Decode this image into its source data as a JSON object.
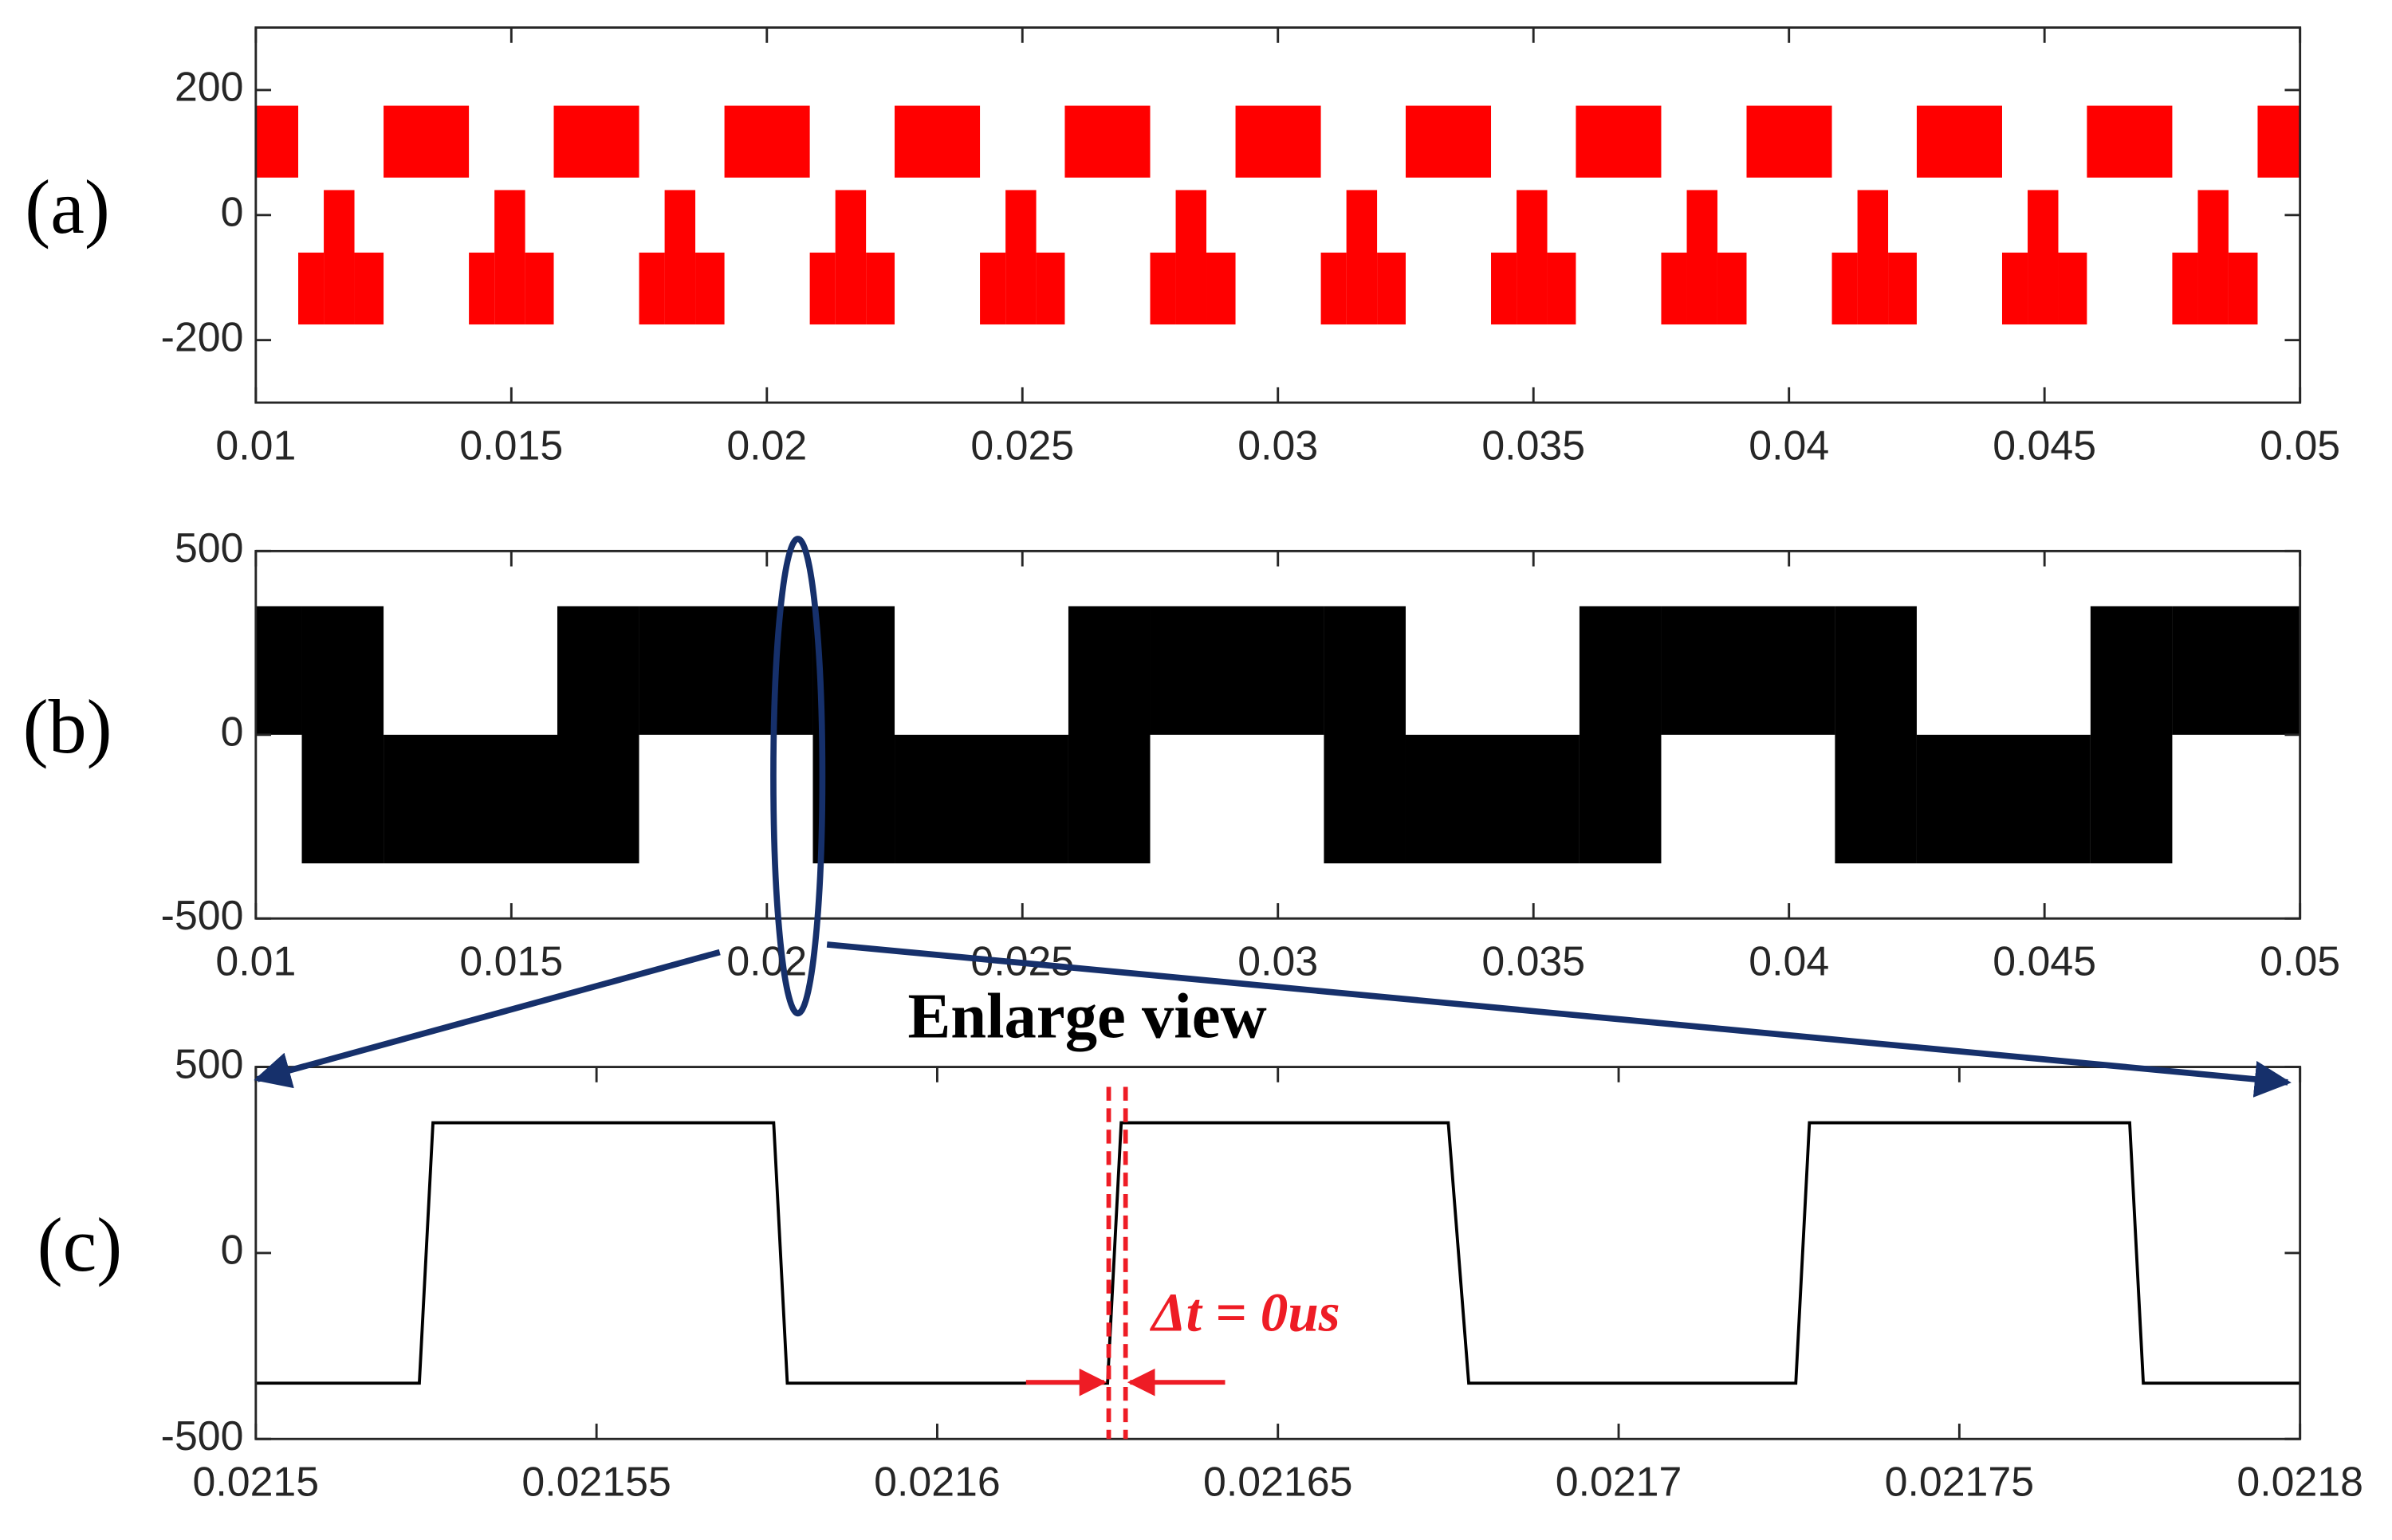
{
  "chart_data": [
    {
      "type": "band",
      "label": "(a)",
      "color": "#ff0000",
      "x": [
        0.01,
        0.01083,
        0.01133,
        0.01193,
        0.0125,
        0.01417,
        0.01467,
        0.01527,
        0.01583,
        0.0175,
        0.018,
        0.0186,
        0.01917,
        0.02084,
        0.02134,
        0.02194,
        0.0225,
        0.02417,
        0.02467,
        0.02527,
        0.02583,
        0.0275,
        0.028,
        0.0286,
        0.02917,
        0.03084,
        0.03134,
        0.03194,
        0.0325,
        0.03417,
        0.03467,
        0.03527,
        0.03583,
        0.0375,
        0.038,
        0.0386,
        0.03917,
        0.04084,
        0.04134,
        0.04194,
        0.0425,
        0.04417,
        0.04467,
        0.04527,
        0.04583,
        0.0475,
        0.048,
        0.0486,
        0.04917
      ],
      "high": [
        175,
        -60,
        40,
        -60,
        175,
        -60,
        40,
        -60,
        175,
        -60,
        40,
        -60,
        175,
        -60,
        40,
        -60,
        175,
        -60,
        40,
        -60,
        175,
        -60,
        40,
        -60,
        175,
        -60,
        40,
        -60,
        175,
        -60,
        40,
        -60,
        175,
        -60,
        40,
        -60,
        175,
        -60,
        40,
        -60,
        175,
        -60,
        40,
        -60,
        175,
        -60,
        40,
        -60,
        175
      ],
      "low": [
        60,
        -175,
        -175,
        -175,
        60,
        -175,
        -175,
        -175,
        60,
        -175,
        -175,
        -175,
        60,
        -175,
        -175,
        -175,
        60,
        -175,
        -175,
        -175,
        60,
        -175,
        -175,
        -175,
        60,
        -175,
        -175,
        -175,
        60,
        -175,
        -175,
        -175,
        60,
        -175,
        -175,
        -175,
        60,
        -175,
        -175,
        -175,
        60,
        -175,
        -175,
        -175,
        60,
        -175,
        -175,
        -175,
        60
      ],
      "xlim": [
        0.01,
        0.05
      ],
      "xticks": [
        0.01,
        0.015,
        0.02,
        0.025,
        0.03,
        0.035,
        0.04,
        0.045,
        0.05
      ],
      "ylim": [
        -300,
        300
      ],
      "yticks": [
        -200,
        0,
        200
      ]
    },
    {
      "type": "band",
      "label": "(b)",
      "color": "#000000",
      "annotation": "Enlarge view",
      "x": [
        0.01,
        0.0109,
        0.0125,
        0.0159,
        0.0175,
        0.0209,
        0.0225,
        0.0259,
        0.0275,
        0.0309,
        0.0325,
        0.0359,
        0.0375,
        0.0409,
        0.0425,
        0.0459,
        0.0475
      ],
      "high": [
        350,
        350,
        0,
        350,
        350,
        350,
        0,
        350,
        350,
        350,
        0,
        350,
        350,
        350,
        0,
        350,
        350
      ],
      "low": [
        0,
        -350,
        -350,
        -350,
        0,
        -350,
        -350,
        -350,
        0,
        -350,
        -350,
        -350,
        0,
        -350,
        -350,
        -350,
        0
      ],
      "xlim": [
        0.01,
        0.05
      ],
      "xticks": [
        0.01,
        0.015,
        0.02,
        0.025,
        0.03,
        0.035,
        0.04,
        0.045,
        0.05
      ],
      "ylim": [
        -500,
        500
      ],
      "yticks": [
        -500,
        0,
        500
      ]
    },
    {
      "type": "line",
      "label": "(c)",
      "color": "#000000",
      "annotation": "Δt = 0us",
      "x": [
        0.0215,
        0.021524,
        0.021526,
        0.021576,
        0.021578,
        0.021625,
        0.021627,
        0.021675,
        0.021678,
        0.021726,
        0.021728,
        0.021775,
        0.021777,
        0.0218
      ],
      "values": [
        -350,
        -350,
        350,
        350,
        -350,
        -350,
        350,
        350,
        -350,
        -350,
        350,
        350,
        -350,
        -350
      ],
      "xlim": [
        0.0215,
        0.0218
      ],
      "xticks": [
        0.0215,
        0.02155,
        0.0216,
        0.02165,
        0.0217,
        0.02175,
        0.0218
      ],
      "ylim": [
        -500,
        500
      ],
      "yticks": [
        -500,
        0,
        500
      ]
    }
  ]
}
